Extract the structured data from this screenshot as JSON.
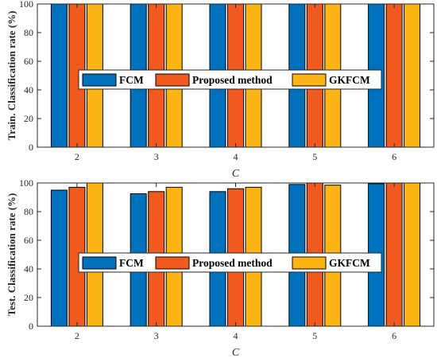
{
  "chart_data": [
    {
      "type": "bar",
      "categories": [
        "2",
        "3",
        "4",
        "5",
        "6"
      ],
      "series": [
        {
          "name": "FCM",
          "values": [
            100,
            100,
            100,
            100,
            100
          ]
        },
        {
          "name": "Proposed method",
          "values": [
            100,
            100,
            100,
            100,
            100
          ]
        },
        {
          "name": "GKFCM",
          "values": [
            100,
            100,
            100,
            100,
            100
          ]
        }
      ],
      "xlabel": "C",
      "ylabel": "Train. Classification rate (%)",
      "ylim": [
        0,
        100
      ],
      "yticks": [
        "0",
        "20",
        "40",
        "60",
        "80",
        "100"
      ],
      "grid": false,
      "legend": "center, horizontal"
    },
    {
      "type": "bar",
      "categories": [
        "2",
        "3",
        "4",
        "5",
        "6"
      ],
      "series": [
        {
          "name": "FCM",
          "values": [
            95,
            92.5,
            94,
            99,
            99.5
          ]
        },
        {
          "name": "Proposed method",
          "values": [
            97,
            94,
            96,
            100,
            100
          ]
        },
        {
          "name": "GKFCM",
          "values": [
            100,
            97,
            97,
            98.5,
            100
          ]
        }
      ],
      "xlabel": "C",
      "ylabel": "Test. Classification rate (%)",
      "ylim": [
        0,
        100
      ],
      "yticks": [
        "0",
        "20",
        "40",
        "60",
        "80",
        "100"
      ],
      "grid": false,
      "legend": "center, horizontal"
    }
  ],
  "colors": {
    "FCM": "#0072BD",
    "Proposed method": "#F05A1E",
    "GKFCM": "#FDB515",
    "axis": "#262626"
  }
}
